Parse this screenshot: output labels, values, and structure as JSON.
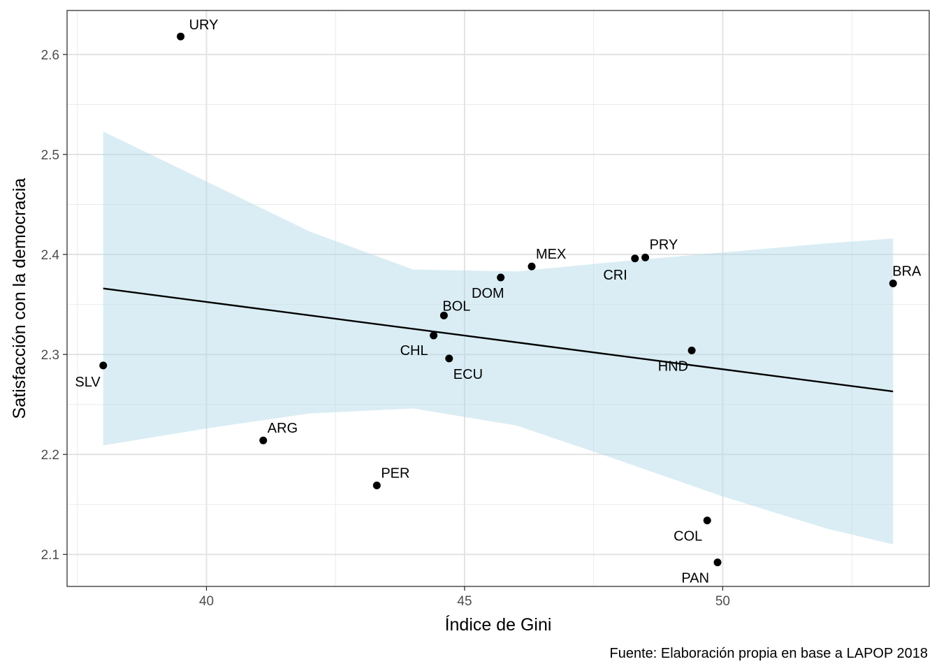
{
  "chart_data": {
    "type": "scatter",
    "xlabel": "Índice de Gini",
    "ylabel": "Satisfacción con la democracia",
    "caption": "Fuente: Elaboración propia en base a LAPOP 2018",
    "xlim": [
      37.3,
      54.0
    ],
    "ylim": [
      2.068,
      2.644
    ],
    "x_ticks": [
      40,
      45,
      50
    ],
    "x_tick_labels": [
      "40",
      "45",
      "50"
    ],
    "y_ticks": [
      2.1,
      2.2,
      2.3,
      2.4,
      2.5,
      2.6
    ],
    "y_tick_labels": [
      "2.1",
      "2.2",
      "2.3",
      "2.4",
      "2.5",
      "2.6"
    ],
    "grid": true,
    "colors": {
      "points": "#000000",
      "ribbon": "#add8e6",
      "line": "#000000",
      "grid": "#ebebeb",
      "panel_border": "#333333",
      "tick_text": "#4d4d4d"
    },
    "points": [
      {
        "label": "URY",
        "x": 39.5,
        "y": 2.618
      },
      {
        "label": "SLV",
        "x": 38.0,
        "y": 2.289
      },
      {
        "label": "ARG",
        "x": 41.1,
        "y": 2.214
      },
      {
        "label": "PER",
        "x": 43.3,
        "y": 2.169
      },
      {
        "label": "CHL",
        "x": 44.4,
        "y": 2.319
      },
      {
        "label": "BOL",
        "x": 44.6,
        "y": 2.339
      },
      {
        "label": "ECU",
        "x": 44.7,
        "y": 2.296
      },
      {
        "label": "DOM",
        "x": 45.7,
        "y": 2.377
      },
      {
        "label": "MEX",
        "x": 46.3,
        "y": 2.388
      },
      {
        "label": "CRI",
        "x": 48.3,
        "y": 2.396
      },
      {
        "label": "PRY",
        "x": 48.5,
        "y": 2.397
      },
      {
        "label": "HND",
        "x": 49.4,
        "y": 2.304
      },
      {
        "label": "COL",
        "x": 49.7,
        "y": 2.134
      },
      {
        "label": "PAN",
        "x": 49.9,
        "y": 2.092
      },
      {
        "label": "BRA",
        "x": 53.3,
        "y": 2.371
      }
    ],
    "trend_line": {
      "x": [
        38.0,
        53.3
      ],
      "y": [
        2.366,
        2.263
      ]
    },
    "confidence_band": {
      "x": [
        38.0,
        40.0,
        42.0,
        44.0,
        46.0,
        48.0,
        50.0,
        52.0,
        53.3
      ],
      "lower": [
        2.209,
        2.226,
        2.241,
        2.246,
        2.229,
        2.194,
        2.158,
        2.126,
        2.11
      ],
      "upper": [
        2.523,
        2.473,
        2.423,
        2.385,
        2.383,
        2.393,
        2.402,
        2.411,
        2.416
      ]
    }
  }
}
